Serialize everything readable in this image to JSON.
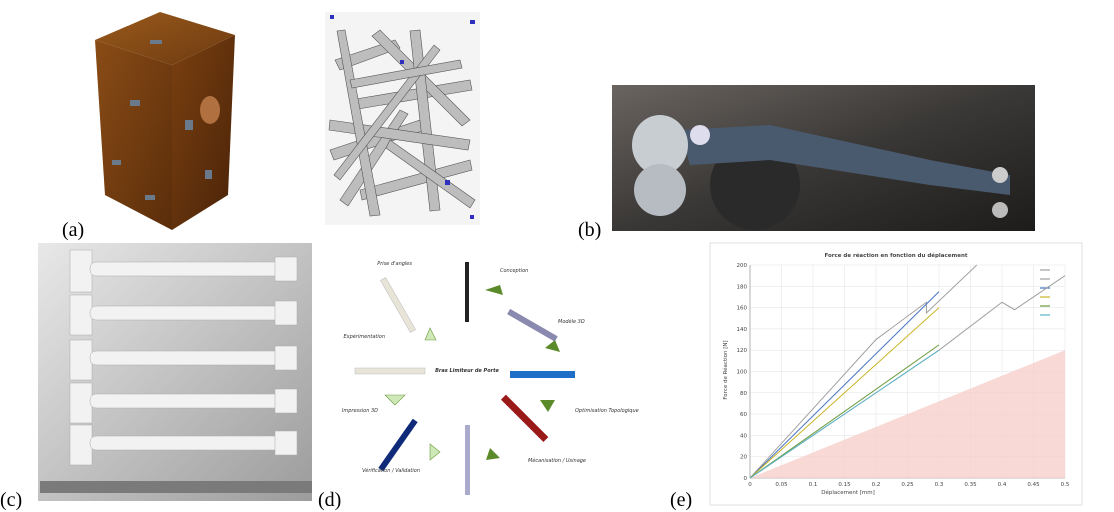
{
  "panels": [
    {
      "label": "(a)"
    },
    {
      "label": "(b)"
    },
    {
      "label": "(c)"
    },
    {
      "label": "(d)"
    },
    {
      "label": "(e)"
    }
  ],
  "diagram": {
    "center": "Bras Limiteur de Porte",
    "steps": [
      "Conception",
      "Modèle 3D",
      "Optimisation Topologique",
      "Mécanisation / Usinage",
      "Vérification / Validation",
      "Impression 3D",
      "Expérimentation",
      "Prise d'angles"
    ]
  },
  "chart_data": {
    "type": "line",
    "title": "Force de réaction en fonction du déplacement",
    "x_label": "Déplacement [mm]",
    "y_label": "Force de Réaction [N]",
    "xlim": [
      0,
      0.5
    ],
    "ylim": [
      0,
      200
    ],
    "xticks": [
      0,
      0.05,
      0.1,
      0.15,
      0.2,
      0.25,
      0.3,
      0.35,
      0.4,
      0.45,
      0.5
    ],
    "yticks": [
      0,
      20,
      40,
      60,
      80,
      100,
      120,
      140,
      160,
      180,
      200
    ],
    "grid": true,
    "area": {
      "color": "#f6cfcb",
      "x": [
        0,
        0.5
      ],
      "values": [
        0,
        120
      ]
    },
    "series": [
      {
        "color": "#a0a0a0",
        "x": [
          0,
          0.2,
          0.28,
          0.28,
          0.36
        ],
        "values": [
          0,
          130,
          165,
          155,
          200
        ]
      },
      {
        "color": "#a0a0a0",
        "x": [
          0,
          0.3,
          0.4,
          0.42,
          0.5
        ],
        "values": [
          0,
          120,
          165,
          158,
          190
        ]
      },
      {
        "color": "#4472c4",
        "x": [
          0,
          0.3
        ],
        "values": [
          0,
          175
        ]
      },
      {
        "color": "#c9b52a",
        "x": [
          0,
          0.3
        ],
        "values": [
          0,
          160
        ]
      },
      {
        "color": "#6a9a3a",
        "x": [
          0,
          0.3
        ],
        "values": [
          0,
          125
        ]
      },
      {
        "color": "#5bb5c9",
        "x": [
          0,
          0.3
        ],
        "values": [
          0,
          120
        ]
      }
    ]
  }
}
